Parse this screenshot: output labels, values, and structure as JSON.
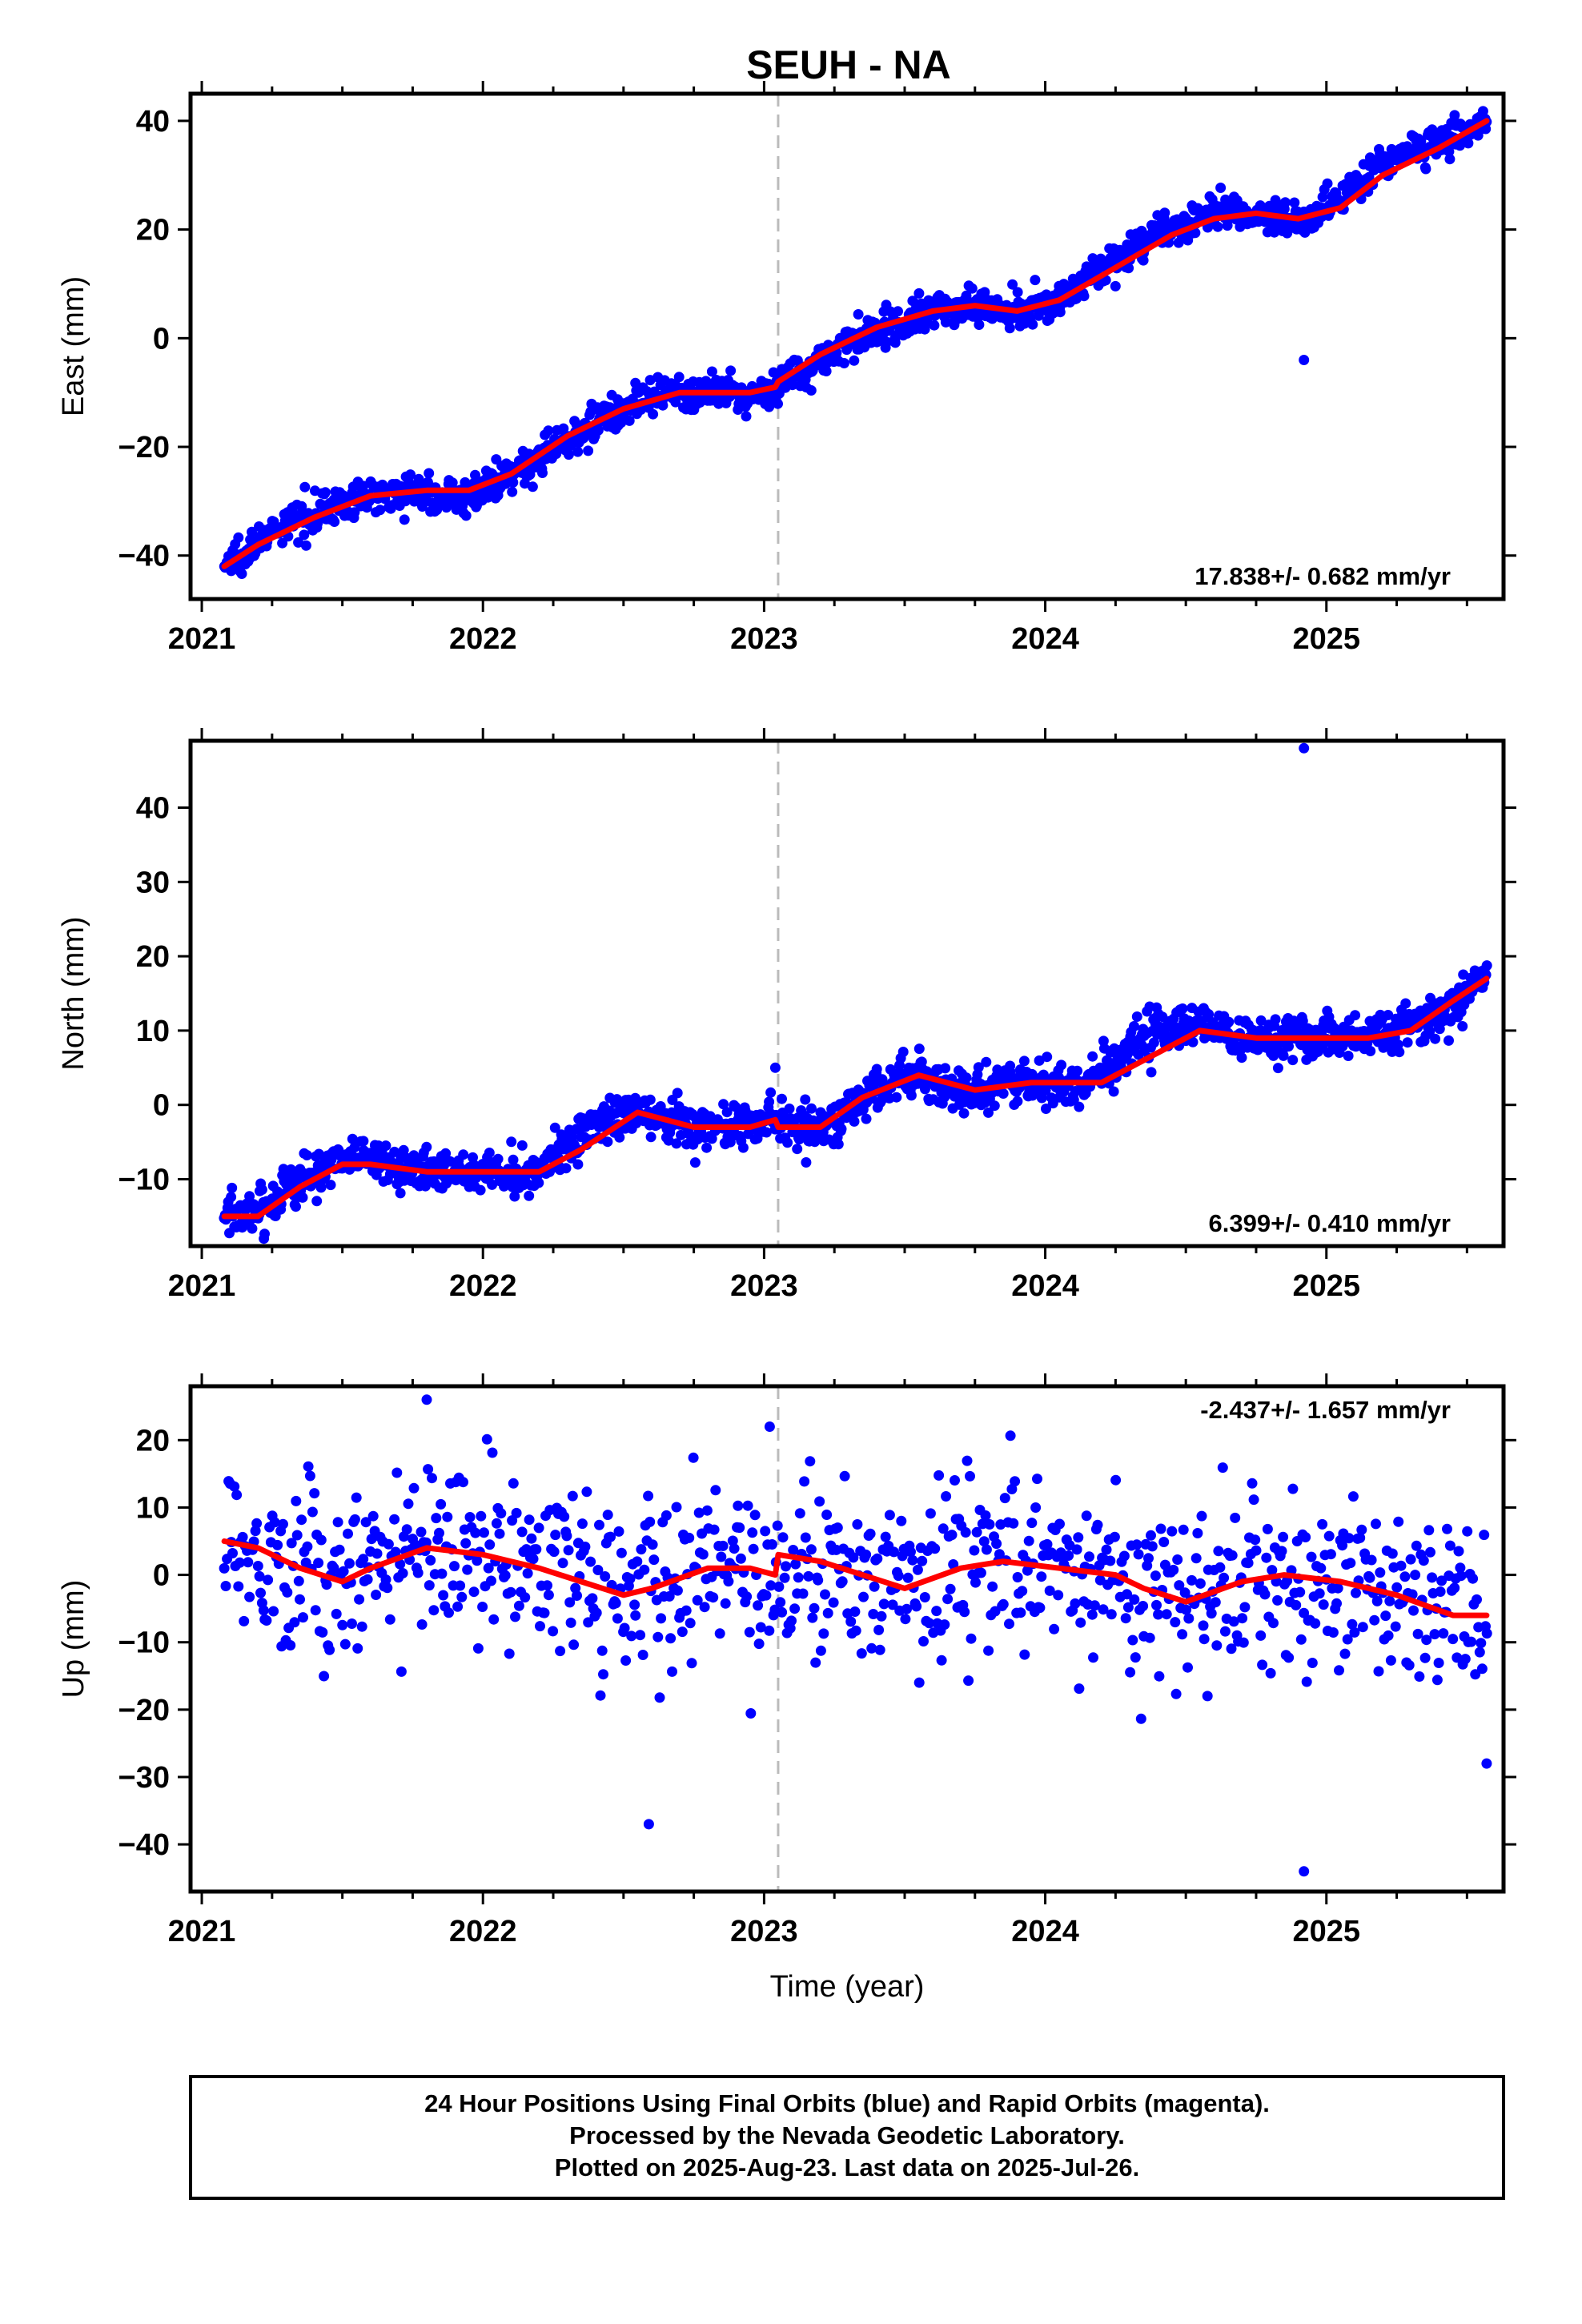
{
  "title": "SEUH - NA",
  "xlabel": "Time (year)",
  "footer": {
    "lines": [
      "24 Hour Positions Using Final Orbits (blue) and Rapid Orbits (magenta).",
      "Processed by the Nevada Geodetic Laboratory.",
      "Plotted on 2025-Aug-23. Last data on 2025-Jul-26."
    ]
  },
  "colors": {
    "points": "#0000ff",
    "fit": "#ff0000",
    "event_line": "#bbbbbb",
    "frame": "#000000"
  },
  "chart_data": [
    {
      "type": "scatter",
      "ylabel": "East (mm)",
      "rate": "17.838+/- 0.682 mm/yr",
      "rate_position": "bottom-right",
      "xlim": [
        2020.96,
        2025.63
      ],
      "ylim": [
        -48,
        45
      ],
      "yticks": [
        40,
        20,
        0,
        -20,
        -40
      ],
      "ytick_labels": [
        "40",
        "20",
        "0",
        "−20",
        "−40"
      ],
      "xticks": [
        2021,
        2022,
        2023,
        2024,
        2025
      ],
      "xtick_labels": [
        "2021",
        "2022",
        "2023",
        "2024",
        "2025"
      ],
      "grid": false,
      "event_line_x": 2023.05,
      "series": [
        {
          "role": "daily positions",
          "x": [
            2021.08,
            2021.15,
            2021.25,
            2021.35,
            2021.45,
            2021.55,
            2021.65,
            2021.75,
            2021.85,
            2021.95,
            2022.05,
            2022.15,
            2022.25,
            2022.35,
            2022.45,
            2022.55,
            2022.65,
            2022.75,
            2022.85,
            2022.95,
            2023.04,
            2023.1,
            2023.2,
            2023.3,
            2023.4,
            2023.5,
            2023.6,
            2023.7,
            2023.8,
            2023.9,
            2024.0,
            2024.1,
            2024.2,
            2024.3,
            2024.4,
            2024.5,
            2024.6,
            2024.7,
            2024.8,
            2024.9,
            2025.0,
            2025.1,
            2025.2,
            2025.3,
            2025.4,
            2025.5,
            2025.57
          ],
          "y": [
            -42,
            -39,
            -36,
            -33,
            -31,
            -30,
            -28,
            -28,
            -29,
            -29,
            -27,
            -24,
            -20,
            -17,
            -14,
            -12,
            -11,
            -10,
            -10,
            -11,
            -9,
            -7,
            -4,
            -1,
            1,
            3,
            5,
            6,
            6,
            5,
            6,
            9,
            13,
            16,
            19,
            21,
            23,
            23,
            22,
            22,
            24,
            28,
            32,
            35,
            36,
            38,
            40
          ]
        },
        {
          "role": "fit",
          "x": [
            2021.08,
            2021.2,
            2021.4,
            2021.6,
            2021.8,
            2021.95,
            2022.1,
            2022.3,
            2022.5,
            2022.7,
            2022.85,
            2022.95,
            2023.04,
            2023.05,
            2023.2,
            2023.4,
            2023.6,
            2023.75,
            2023.9,
            2024.05,
            2024.25,
            2024.45,
            2024.6,
            2024.75,
            2024.9,
            2025.05,
            2025.2,
            2025.4,
            2025.57
          ],
          "y": [
            -42,
            -38,
            -33,
            -29,
            -28,
            -28,
            -25,
            -18,
            -13,
            -10,
            -10,
            -10,
            -9,
            -8,
            -3,
            2,
            5,
            6,
            5,
            7,
            13,
            19,
            22,
            23,
            22,
            24,
            30,
            35,
            40
          ]
        },
        {
          "role": "outlier",
          "x": [
            2024.92
          ],
          "y": [
            -4
          ]
        }
      ]
    },
    {
      "type": "scatter",
      "ylabel": "North (mm)",
      "rate": "6.399+/- 0.410 mm/yr",
      "rate_position": "bottom-right",
      "xlim": [
        2020.96,
        2025.63
      ],
      "ylim": [
        -19,
        49
      ],
      "yticks": [
        40,
        30,
        20,
        10,
        0,
        -10
      ],
      "ytick_labels": [
        "40",
        "30",
        "20",
        "10",
        "0",
        "−10"
      ],
      "xticks": [
        2021,
        2022,
        2023,
        2024,
        2025
      ],
      "xtick_labels": [
        "2021",
        "2022",
        "2023",
        "2024",
        "2025"
      ],
      "grid": false,
      "event_line_x": 2023.05,
      "series": [
        {
          "role": "daily positions",
          "x": [
            2021.08,
            2021.15,
            2021.25,
            2021.35,
            2021.45,
            2021.55,
            2021.65,
            2021.75,
            2021.85,
            2021.95,
            2022.05,
            2022.15,
            2022.25,
            2022.35,
            2022.45,
            2022.55,
            2022.65,
            2022.75,
            2022.85,
            2022.95,
            2023.04,
            2023.1,
            2023.2,
            2023.3,
            2023.4,
            2023.5,
            2023.6,
            2023.7,
            2023.8,
            2023.9,
            2024.0,
            2024.1,
            2024.2,
            2024.3,
            2024.4,
            2024.5,
            2024.6,
            2024.7,
            2024.8,
            2024.9,
            2025.0,
            2025.1,
            2025.2,
            2025.3,
            2025.4,
            2025.5,
            2025.57
          ],
          "y": [
            -15,
            -15,
            -13,
            -10,
            -8,
            -7,
            -8,
            -9,
            -9,
            -9,
            -9,
            -9,
            -7,
            -4,
            -2,
            -1,
            -2,
            -3,
            -3,
            -3,
            -2,
            -3,
            -3,
            -1,
            2,
            4,
            3,
            2,
            2,
            3,
            3,
            3,
            4,
            7,
            10,
            11,
            10,
            9,
            9,
            9,
            9,
            9,
            10,
            11,
            12,
            15,
            17
          ]
        },
        {
          "role": "fit",
          "x": [
            2021.08,
            2021.2,
            2021.35,
            2021.5,
            2021.6,
            2021.8,
            2022.0,
            2022.2,
            2022.35,
            2022.55,
            2022.75,
            2022.95,
            2023.04,
            2023.05,
            2023.2,
            2023.35,
            2023.55,
            2023.75,
            2023.95,
            2024.2,
            2024.35,
            2024.55,
            2024.75,
            2024.95,
            2025.15,
            2025.3,
            2025.45,
            2025.57
          ],
          "y": [
            -15,
            -15,
            -11,
            -8,
            -8,
            -9,
            -9,
            -9,
            -6,
            -1,
            -3,
            -3,
            -2,
            -3,
            -3,
            1,
            4,
            2,
            3,
            3,
            6,
            10,
            9,
            9,
            9,
            10,
            14,
            17
          ]
        },
        {
          "role": "outlier",
          "x": [
            2024.92,
            2023.04
          ],
          "y": [
            48,
            5
          ]
        }
      ]
    },
    {
      "type": "scatter",
      "ylabel": "Up (mm)",
      "rate": "-2.437+/- 1.657 mm/yr",
      "rate_position": "top-right",
      "xlim": [
        2020.96,
        2025.63
      ],
      "ylim": [
        -47,
        28
      ],
      "yticks": [
        20,
        10,
        0,
        -10,
        -20,
        -30,
        -40
      ],
      "ytick_labels": [
        "20",
        "10",
        "0",
        "−10",
        "−20",
        "−30",
        "−40"
      ],
      "xticks": [
        2021,
        2022,
        2023,
        2024,
        2025
      ],
      "xtick_labels": [
        "2021",
        "2022",
        "2023",
        "2024",
        "2025"
      ],
      "grid": false,
      "event_line_x": 2023.05,
      "series": [
        {
          "role": "daily positions",
          "x": [
            2021.08,
            2021.15,
            2021.25,
            2021.35,
            2021.45,
            2021.55,
            2021.65,
            2021.75,
            2021.85,
            2021.95,
            2022.05,
            2022.15,
            2022.25,
            2022.35,
            2022.45,
            2022.55,
            2022.65,
            2022.75,
            2022.85,
            2022.95,
            2023.04,
            2023.1,
            2023.2,
            2023.3,
            2023.4,
            2023.5,
            2023.6,
            2023.7,
            2023.8,
            2023.9,
            2024.0,
            2024.1,
            2024.2,
            2024.3,
            2024.4,
            2024.5,
            2024.6,
            2024.7,
            2024.8,
            2024.9,
            2025.0,
            2025.1,
            2025.2,
            2025.3,
            2025.4,
            2025.5,
            2025.57
          ],
          "y": [
            5,
            4,
            3,
            1,
            -1,
            0,
            3,
            5,
            4,
            3,
            3,
            2,
            1,
            -1,
            -2,
            -2,
            0,
            2,
            1,
            1,
            0,
            3,
            2,
            0,
            -2,
            -1,
            1,
            3,
            2,
            1,
            1,
            0,
            0,
            -2,
            -4,
            -3,
            -1,
            0,
            0,
            -1,
            -1,
            -2,
            -3,
            -4,
            -6,
            -7,
            -6
          ]
        },
        {
          "role": "fit",
          "x": [
            2021.08,
            2021.2,
            2021.35,
            2021.5,
            2021.6,
            2021.8,
            2022.0,
            2022.2,
            2022.35,
            2022.5,
            2022.6,
            2022.8,
            2022.95,
            2023.04,
            2023.05,
            2023.2,
            2023.35,
            2023.5,
            2023.7,
            2023.85,
            2024.05,
            2024.25,
            2024.35,
            2024.5,
            2024.7,
            2024.85,
            2025.05,
            2025.25,
            2025.45,
            2025.57
          ],
          "y": [
            5,
            4,
            1,
            -1,
            1,
            4,
            3,
            1,
            -1,
            -3,
            -2,
            1,
            1,
            0,
            3,
            2,
            0,
            -2,
            1,
            2,
            1,
            0,
            -2,
            -4,
            -1,
            0,
            -1,
            -3,
            -6,
            -6
          ]
        },
        {
          "role": "outlier",
          "x": [
            2024.92,
            2022.59,
            2025.57,
            2021.8,
            2023.02
          ],
          "y": [
            -44,
            -37,
            -28,
            26,
            22
          ]
        }
      ]
    }
  ]
}
